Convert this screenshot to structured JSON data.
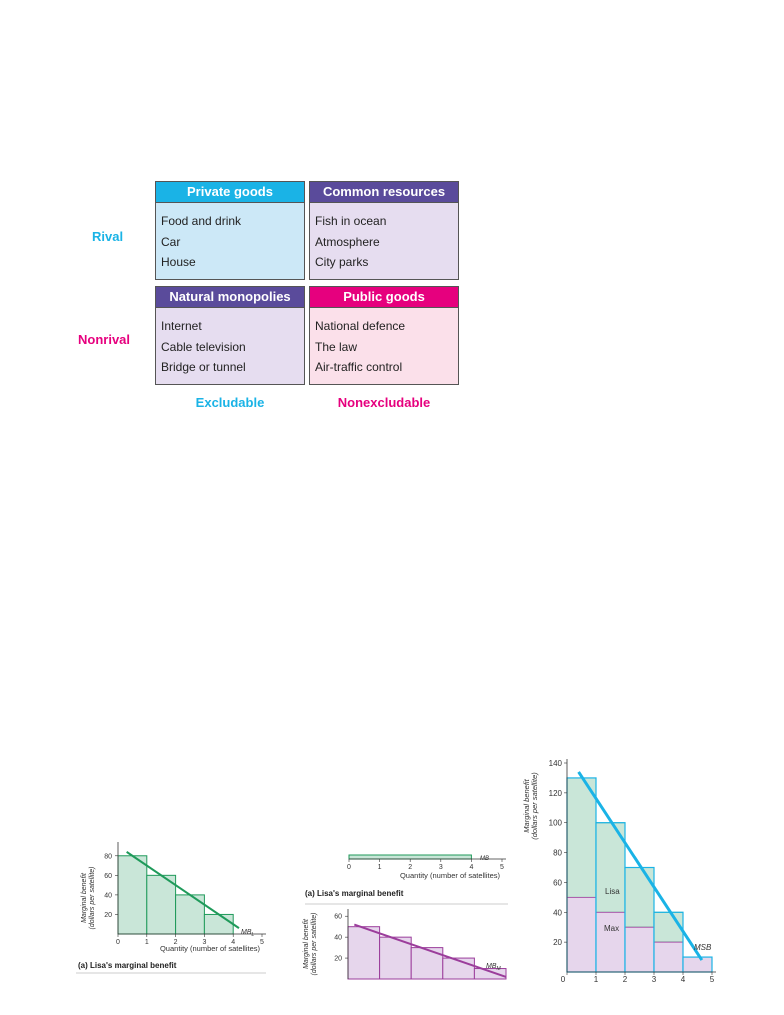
{
  "matrix": {
    "rows": [
      "Rival",
      "Nonrival"
    ],
    "columns": [
      "Excludable",
      "Nonexcludable"
    ],
    "cells": [
      {
        "title": "Private goods",
        "items": [
          "Food and drink",
          "Car",
          "House"
        ]
      },
      {
        "title": "Common resources",
        "items": [
          "Fish in ocean",
          "Atmosphere",
          "City parks"
        ]
      },
      {
        "title": "Natural monopolies",
        "items": [
          "Internet",
          "Cable television",
          "Bridge or tunnel"
        ]
      },
      {
        "title": "Public goods",
        "items": [
          "National defence",
          "The law",
          "Air-traffic control"
        ]
      }
    ],
    "colors": {
      "rival_label": "#1ab3e6",
      "nonrival_label": "#e6007e",
      "excludable_label": "#1ab3e6",
      "nonexcludable_label": "#e6007e",
      "private_header": "#1ab3e6",
      "private_body": "#cce8f7",
      "common_header": "#5a4b9b",
      "common_body": "#e6ddf0",
      "natural_header": "#5a4b9b",
      "natural_body": "#e6ddf0",
      "public_header": "#e6007e",
      "public_body": "#fbe0ea"
    }
  },
  "chart_data": [
    {
      "type": "bar",
      "title": "(a) Lisa's marginal benefit",
      "xlabel": "Quantity (number of satellites)",
      "ylabel_lines": [
        "Marginal benefit",
        "(dollars per satellite)"
      ],
      "x_ticks": [
        "0",
        "1",
        "2",
        "3",
        "4",
        "5"
      ],
      "y_ticks": [
        "20",
        "40",
        "60",
        "80"
      ],
      "xlim": [
        0,
        5
      ],
      "ylim": [
        0,
        90
      ],
      "categories": [
        1,
        2,
        3,
        4
      ],
      "values": [
        80,
        60,
        40,
        20
      ],
      "line": {
        "name": "MB",
        "subscript": "L",
        "x": [
          0.3,
          4.2
        ],
        "y": [
          84,
          6
        ]
      },
      "bar_fill": "#c9e6d8",
      "bar_stroke": "#1f9a5a",
      "line_color": "#1f9a5a"
    },
    {
      "type": "bar",
      "title": "(a) Lisa's marginal benefit",
      "xlabel": "Quantity (number of satellites)",
      "x_ticks": [
        "0",
        "1",
        "2",
        "3",
        "4",
        "5"
      ],
      "line_label": "MB",
      "bar_stroke": "#1f9a5a",
      "bar_fill": "#c9e6d8"
    },
    {
      "type": "bar",
      "ylabel_lines": [
        "Marginal benefit",
        "(dollars per satellite)"
      ],
      "y_ticks": [
        "20",
        "40",
        "60"
      ],
      "xlim": [
        0,
        5
      ],
      "ylim": [
        0,
        65
      ],
      "values": [
        50,
        40,
        30,
        20,
        10
      ],
      "line": {
        "name": "MB",
        "subscript": "M",
        "x": [
          0.2,
          5
        ],
        "y": [
          52,
          2
        ]
      },
      "bar_fill": "#e6d6ec",
      "bar_stroke": "#9b3d9b",
      "line_color": "#9b3d9b"
    },
    {
      "type": "bar",
      "ylabel_lines": [
        "Marginal benefit",
        "(dollars per satellite)"
      ],
      "x_ticks": [
        "0",
        "1",
        "2",
        "3",
        "4",
        "5"
      ],
      "y_ticks": [
        "20",
        "40",
        "60",
        "80",
        "100",
        "120",
        "140"
      ],
      "xlim": [
        0,
        5
      ],
      "ylim": [
        0,
        140
      ],
      "series": [
        {
          "name": "Max",
          "values": [
            50,
            40,
            30,
            20,
            10
          ]
        },
        {
          "name": "Lisa",
          "values": [
            80,
            60,
            40,
            20,
            0
          ]
        }
      ],
      "totals": [
        130,
        100,
        70,
        40,
        10
      ],
      "line": {
        "name": "MSB",
        "x": [
          0.4,
          4.65
        ],
        "y": [
          134,
          8
        ]
      },
      "colors": {
        "max": "#e6d6ec",
        "max_stroke": "#9b3d9b",
        "lisa": "#c9e6d8",
        "lisa_stroke": "#1f9a5a",
        "outline": "#1ab3e6",
        "msb_line": "#1ab3e6"
      }
    }
  ]
}
